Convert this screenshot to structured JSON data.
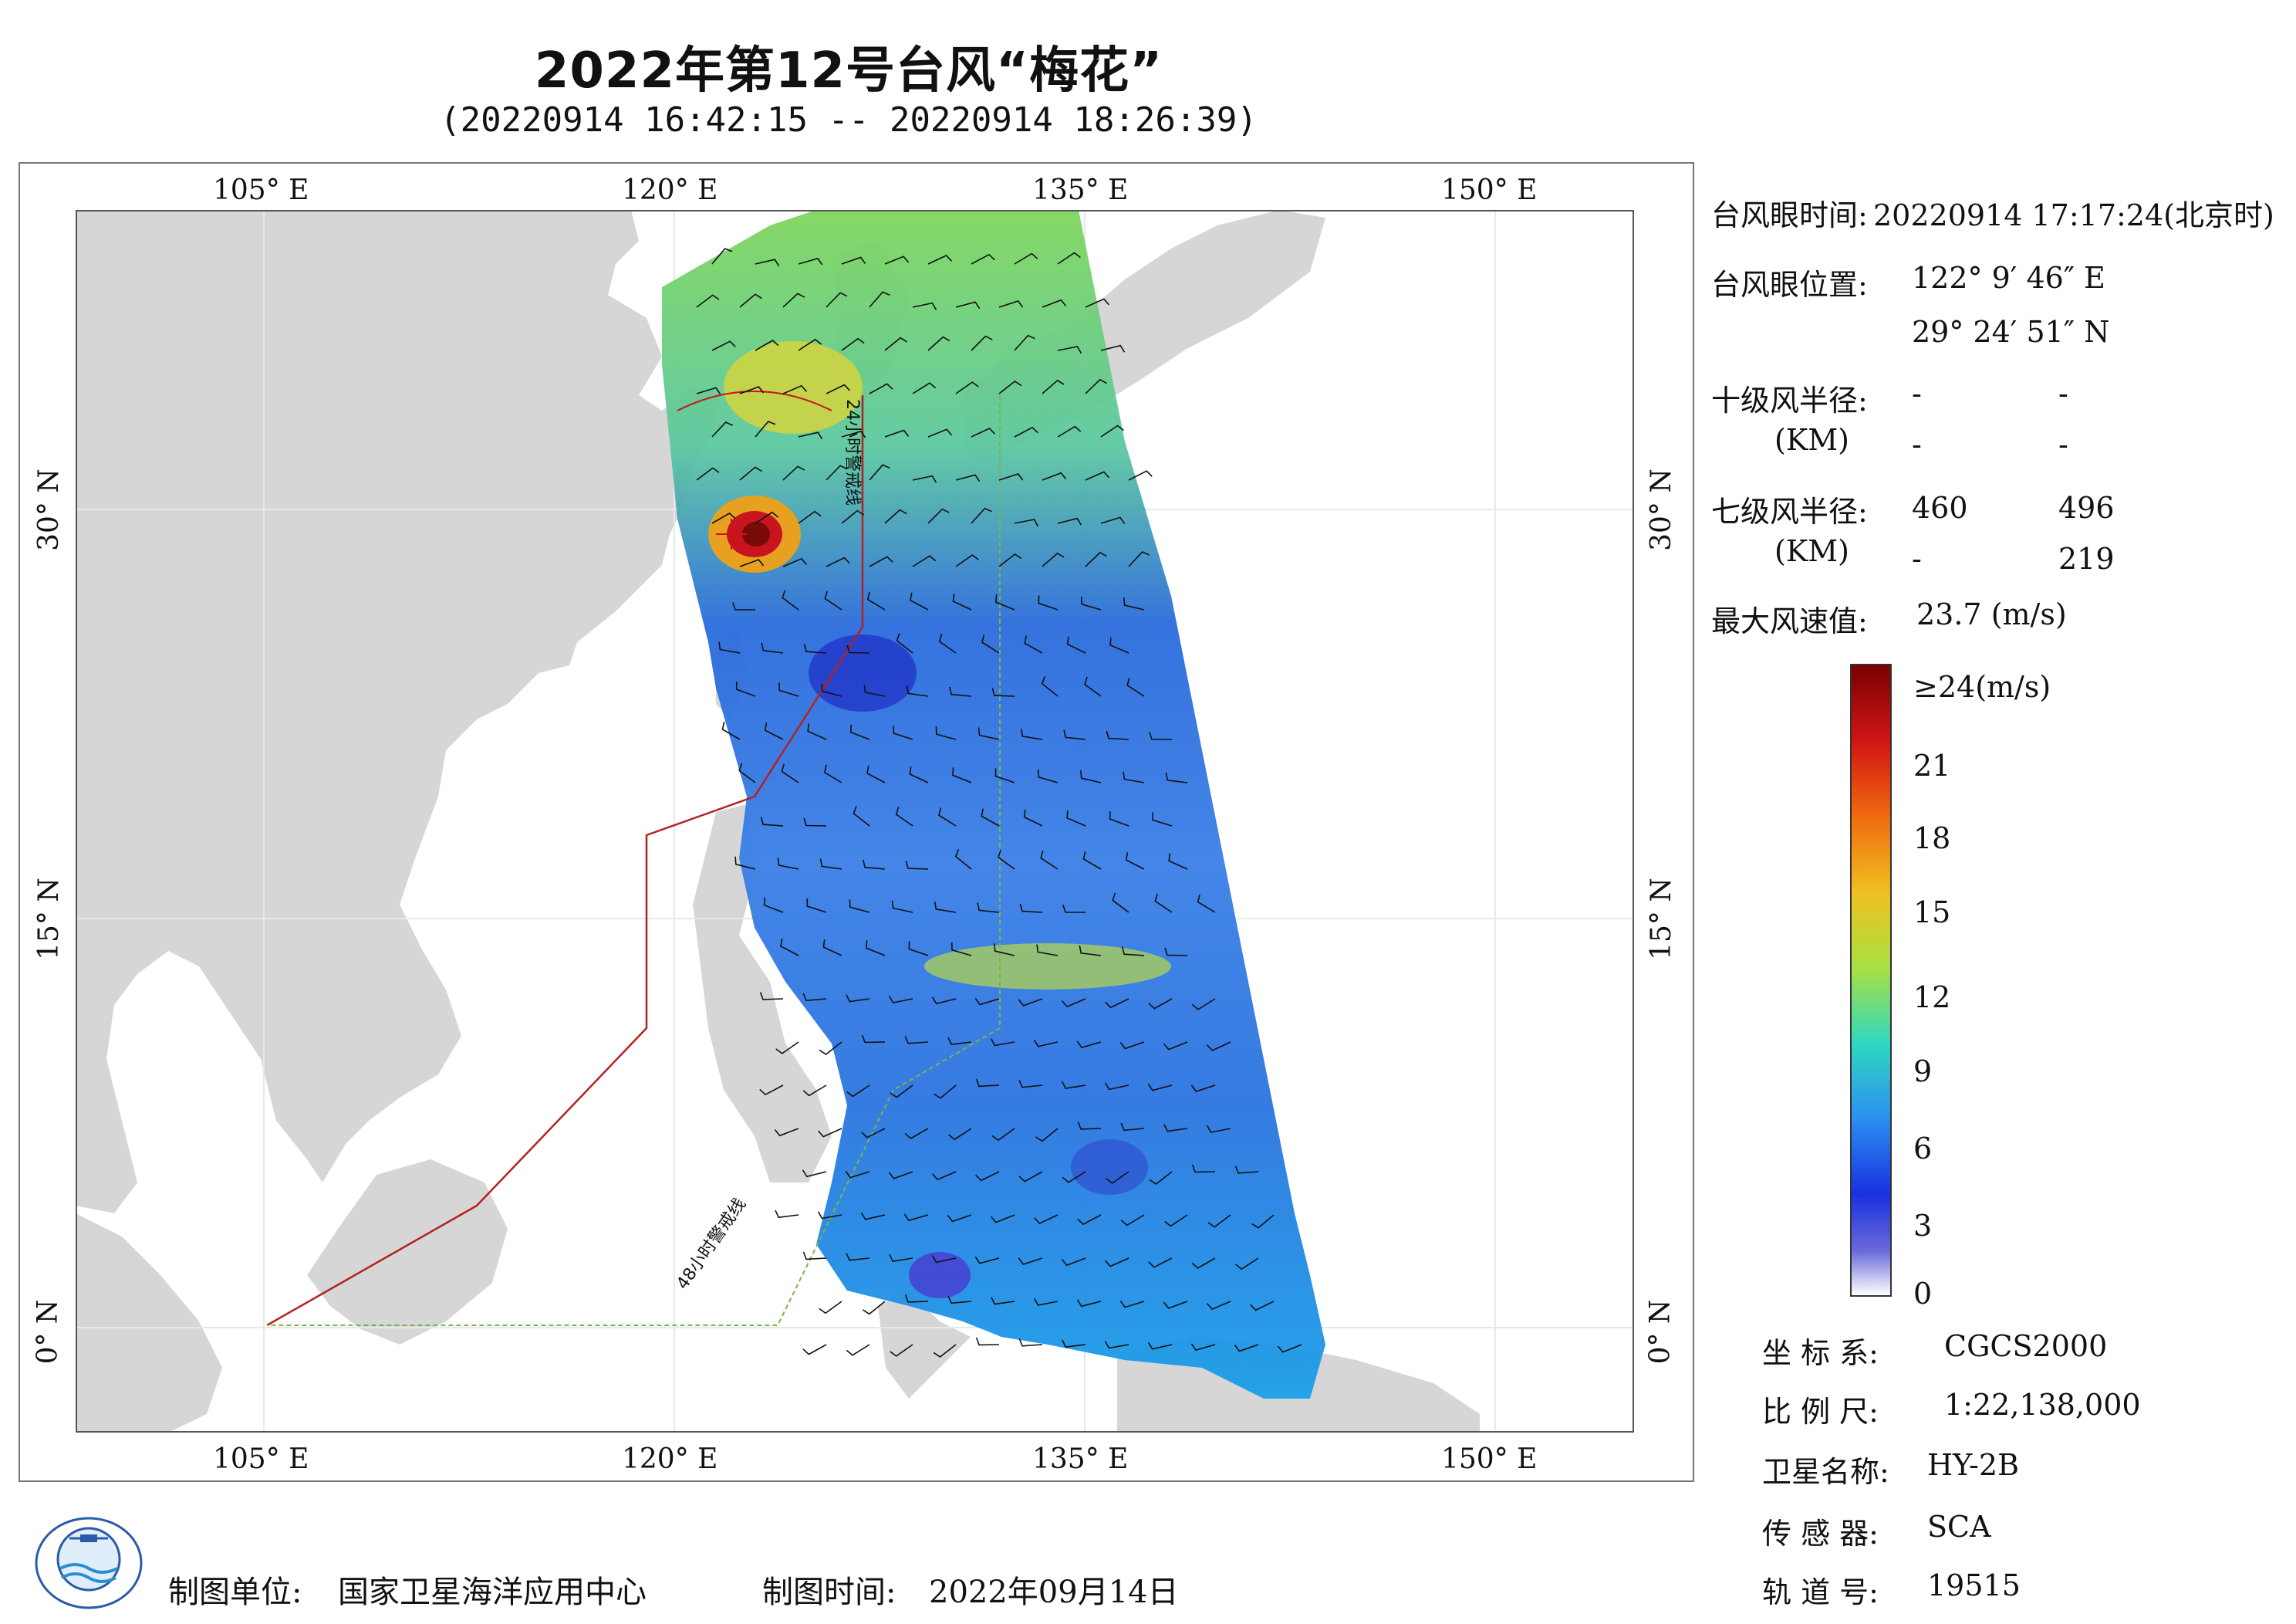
{
  "header": {
    "title": "2022年第12号台风“梅花”",
    "subtitle": "(20220914 16:42:15 -- 20220914 18:26:39)"
  },
  "map": {
    "lon_ticks": [
      "105° E",
      "120° E",
      "135° E",
      "150° E"
    ],
    "lat_ticks_left": [
      "30° N",
      "15° N",
      "0° N"
    ],
    "lat_ticks_right": [
      "30° N",
      "15° N",
      "0° N"
    ],
    "warning_24h_label": "24小时警戒线",
    "warning_48h_label": "48小时警戒线",
    "colors": {
      "land": "#d6d6d6",
      "sea": "#ffffff",
      "warning_24h": "#b22222",
      "warning_48h": "#7ab648",
      "wind_low": "#ffffff",
      "wind_high": "#8b0000"
    }
  },
  "info": {
    "eye_time_label": "台风眼时间:",
    "eye_time_value": "20220914 17:17:24(北京时)",
    "eye_pos_label": "台风眼位置:",
    "eye_lon": "122° 9′ 46″ E",
    "eye_lat": "29° 24′ 51″ N",
    "r10_label": "十级风半径:",
    "r10_unit": "(KM)",
    "r10_values": [
      "-",
      "-",
      "-",
      "-"
    ],
    "r7_label": "七级风半径:",
    "r7_unit": "(KM)",
    "r7_values": [
      "460",
      "496",
      "-",
      "219"
    ],
    "max_wind_label": "最大风速值:",
    "max_wind_value": "23.7 (m/s)"
  },
  "colorbar": {
    "ticks": [
      "≥24(m/s)",
      "21",
      "18",
      "15",
      "12",
      "9",
      "6",
      "3",
      "0"
    ]
  },
  "meta": {
    "coord_label": "坐 标 系:",
    "coord_value": "CGCS2000",
    "scale_label": "比 例 尺:",
    "scale_value": "1:22,138,000",
    "sat_label": "卫星名称:",
    "sat_value": "HY-2B",
    "sensor_label": "传 感 器:",
    "sensor_value": "SCA",
    "orbit_label": "轨 道 号:",
    "orbit_value": "19515"
  },
  "footer": {
    "org_label": "制图单位:",
    "org_value": "国家卫星海洋应用中心",
    "date_label": "制图时间:",
    "date_value": "2022年09月14日"
  }
}
